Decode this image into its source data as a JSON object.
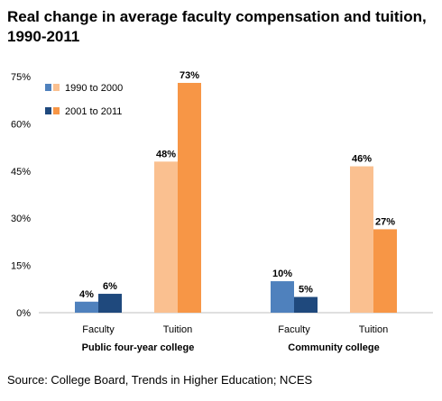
{
  "chart_data": {
    "type": "bar",
    "title": "Real change in average faculty compensation and tuition, 1990-2011",
    "source": "Source: College Board, Trends in Higher Education; NCES",
    "ylim": [
      0,
      75
    ],
    "yticks": [
      "0%",
      "15%",
      "30%",
      "45%",
      "60%",
      "75%"
    ],
    "ytick_values": [
      0,
      15,
      30,
      45,
      60,
      75
    ],
    "grid": false,
    "legend_position": "top-left",
    "legend": [
      {
        "label": "1990 to 2000",
        "colors": [
          "#4f81bd",
          "#fac090"
        ]
      },
      {
        "label": "2001 to 2011",
        "colors": [
          "#1f497d",
          "#f79646"
        ]
      }
    ],
    "groups": [
      {
        "name": "Public four-year college",
        "categories": [
          {
            "label": "Faculty",
            "bars": [
              {
                "period": "1990 to 2000",
                "value": 3.5,
                "label": "4%",
                "color": "#4f81bd"
              },
              {
                "period": "2001 to 2011",
                "value": 6,
                "label": "6%",
                "color": "#1f497d"
              }
            ]
          },
          {
            "label": "Tuition",
            "bars": [
              {
                "period": "1990 to 2000",
                "value": 48,
                "label": "48%",
                "color": "#fac090"
              },
              {
                "period": "2001 to 2011",
                "value": 73,
                "label": "73%",
                "color": "#f79646"
              }
            ]
          }
        ]
      },
      {
        "name": "Community college",
        "categories": [
          {
            "label": "Faculty",
            "bars": [
              {
                "period": "1990 to 2000",
                "value": 10,
                "label": "10%",
                "color": "#4f81bd"
              },
              {
                "period": "2001 to 2011",
                "value": 5,
                "label": "5%",
                "color": "#1f497d"
              }
            ]
          },
          {
            "label": "Tuition",
            "bars": [
              {
                "period": "1990 to 2000",
                "value": 46.5,
                "label": "46%",
                "color": "#fac090"
              },
              {
                "period": "2001 to 2011",
                "value": 26.5,
                "label": "27%",
                "color": "#f79646"
              }
            ]
          }
        ]
      }
    ]
  }
}
